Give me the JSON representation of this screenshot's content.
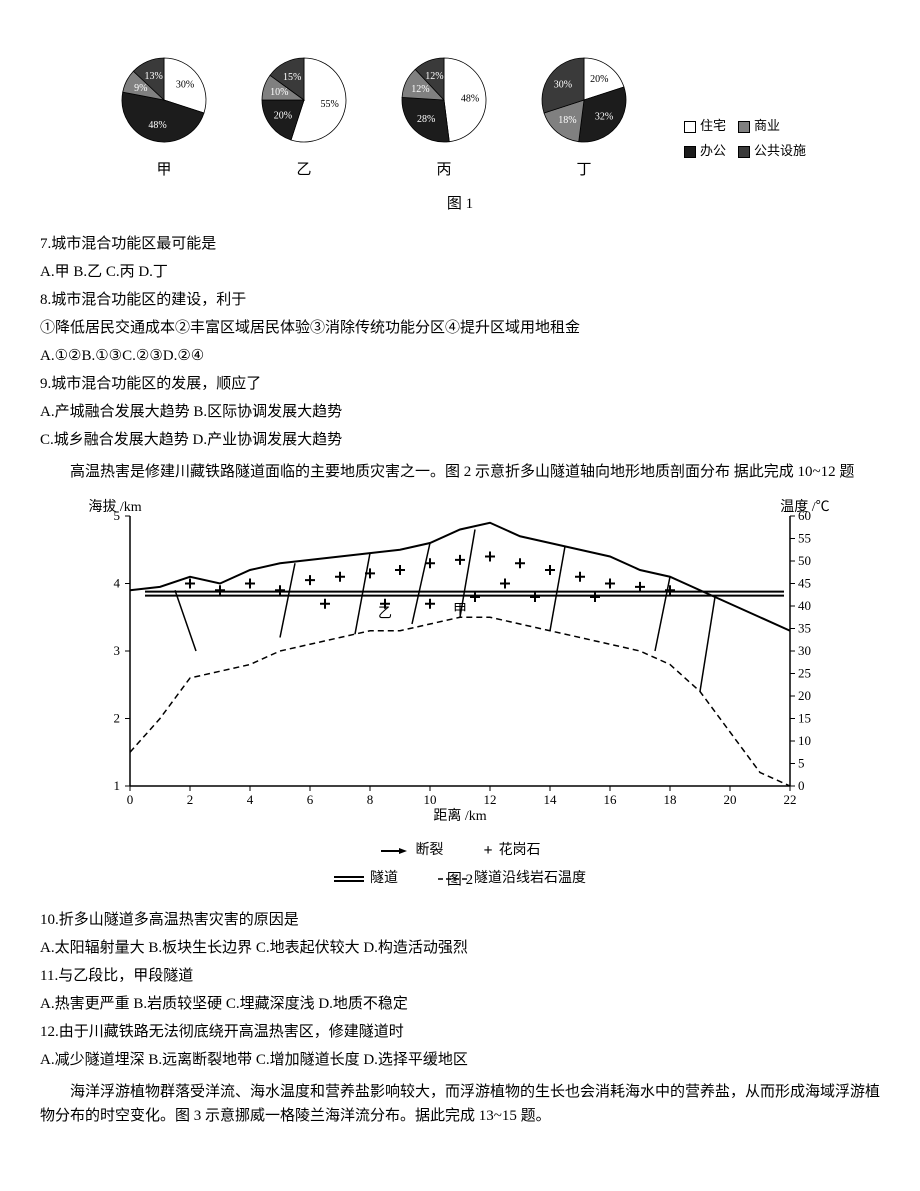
{
  "colors": {
    "residence": "#ffffff",
    "commercial": "#808080",
    "office": "#1c1c1c",
    "public": "#3a3a3a",
    "text": "#000000",
    "chart_line": "#000000",
    "chart_dash": "#000000",
    "bg": "#ffffff"
  },
  "pies": {
    "label_jia": "甲",
    "label_yi": "乙",
    "label_bing": "丙",
    "label_ding": "丁",
    "jia": {
      "slices": [
        {
          "label": "30%",
          "value": 30,
          "color": "#ffffff"
        },
        {
          "label": "48%",
          "value": 48,
          "color": "#1c1c1c"
        },
        {
          "label": "9%",
          "value": 9,
          "color": "#808080"
        },
        {
          "label": "13%",
          "value": 13,
          "color": "#3a3a3a"
        }
      ]
    },
    "yi": {
      "slices": [
        {
          "label": "55%",
          "value": 55,
          "color": "#ffffff"
        },
        {
          "label": "20%",
          "value": 20,
          "color": "#1c1c1c"
        },
        {
          "label": "10%",
          "value": 10,
          "color": "#808080"
        },
        {
          "label": "15%",
          "value": 15,
          "color": "#3a3a3a"
        }
      ]
    },
    "bing": {
      "slices": [
        {
          "label": "48%",
          "value": 48,
          "color": "#ffffff"
        },
        {
          "label": "28%",
          "value": 28,
          "color": "#1c1c1c"
        },
        {
          "label": "12%",
          "value": 12,
          "color": "#808080"
        },
        {
          "label": "12%",
          "value": 12,
          "color": "#3a3a3a"
        }
      ]
    },
    "ding": {
      "slices": [
        {
          "label": "20%",
          "value": 20,
          "color": "#ffffff"
        },
        {
          "label": "32%",
          "value": 32,
          "color": "#1c1c1c"
        },
        {
          "label": "18%",
          "value": 18,
          "color": "#808080"
        },
        {
          "label": "30%",
          "value": 30,
          "color": "#3a3a3a"
        }
      ]
    }
  },
  "pie_legend": {
    "residence": "住宅",
    "commercial": "商业",
    "office": "办公",
    "public": "公共设施"
  },
  "fig1_caption": "图 1",
  "q7": {
    "stem": "7.城市混合功能区最可能是",
    "options": "A.甲 B.乙 C.丙 D.丁"
  },
  "q8": {
    "stem": "8.城市混合功能区的建设，利于",
    "line2": "①降低居民交通成本②丰富区域居民体验③消除传统功能分区④提升区域用地租金",
    "options": "A.①②B.①③C.②③D.②④"
  },
  "q9": {
    "stem": "9.城市混合功能区的发展，顺应了",
    "line2": "A.产城融合发展大趋势 B.区际协调发展大趋势",
    "line3": "C.城乡融合发展大趋势 D.产业协调发展大趋势"
  },
  "passage2": "高温热害是修建川藏铁路隧道面临的主要地质灾害之一。图 2 示意折多山隧道轴向地形地质剖面分布  据此完成 10~12 题",
  "chart2": {
    "xlabel": "距离 /km",
    "ylabel_left": "海拔 /km",
    "ylabel_right": "温度 /℃",
    "x_min": 0,
    "x_max": 22,
    "x_step": 2,
    "y_left_min": 1,
    "y_left_max": 5,
    "y_left_step": 1,
    "y_right_min": 0,
    "y_right_max": 60,
    "y_right_step": 5,
    "terrain": [
      [
        0,
        3.9
      ],
      [
        1,
        3.95
      ],
      [
        2,
        4.1
      ],
      [
        3,
        4.0
      ],
      [
        4,
        4.2
      ],
      [
        5,
        4.3
      ],
      [
        6,
        4.35
      ],
      [
        7,
        4.4
      ],
      [
        8,
        4.45
      ],
      [
        9,
        4.5
      ],
      [
        10,
        4.6
      ],
      [
        11,
        4.8
      ],
      [
        12,
        4.9
      ],
      [
        13,
        4.7
      ],
      [
        14,
        4.6
      ],
      [
        15,
        4.5
      ],
      [
        16,
        4.4
      ],
      [
        17,
        4.2
      ],
      [
        18,
        4.1
      ],
      [
        19,
        3.9
      ],
      [
        20,
        3.7
      ],
      [
        21,
        3.5
      ],
      [
        22,
        3.3
      ]
    ],
    "temp": [
      [
        0,
        1.5
      ],
      [
        1,
        2.0
      ],
      [
        2,
        2.6
      ],
      [
        3,
        2.7
      ],
      [
        4,
        2.8
      ],
      [
        5,
        3.0
      ],
      [
        6,
        3.1
      ],
      [
        7,
        3.2
      ],
      [
        8,
        3.3
      ],
      [
        9,
        3.3
      ],
      [
        10,
        3.4
      ],
      [
        11,
        3.5
      ],
      [
        12,
        3.5
      ],
      [
        13,
        3.4
      ],
      [
        14,
        3.3
      ],
      [
        15,
        3.2
      ],
      [
        16,
        3.1
      ],
      [
        17,
        3.0
      ],
      [
        18,
        2.8
      ],
      [
        19,
        2.4
      ],
      [
        20,
        1.8
      ],
      [
        21,
        1.2
      ],
      [
        22,
        1.0
      ]
    ],
    "tunnel_y": 3.85,
    "tunnel_x0": 0.5,
    "tunnel_x1": 21.8,
    "faults": [
      [
        1.5,
        3.9,
        2.2,
        3.0
      ],
      [
        5.5,
        4.3,
        5.0,
        3.2
      ],
      [
        8.0,
        4.45,
        7.5,
        3.25
      ],
      [
        10.0,
        4.6,
        9.4,
        3.4
      ],
      [
        11.5,
        4.8,
        11.0,
        3.5
      ],
      [
        14.5,
        4.55,
        14.0,
        3.3
      ],
      [
        18.0,
        4.1,
        17.5,
        3.0
      ],
      [
        19.5,
        3.8,
        19.0,
        2.4
      ]
    ],
    "granite_points": [
      [
        2,
        4.0
      ],
      [
        3,
        3.9
      ],
      [
        4,
        4.0
      ],
      [
        5,
        3.9
      ],
      [
        6,
        4.05
      ],
      [
        6.5,
        3.7
      ],
      [
        7,
        4.1
      ],
      [
        8,
        4.15
      ],
      [
        8.5,
        3.7
      ],
      [
        9,
        4.2
      ],
      [
        10,
        4.3
      ],
      [
        10,
        3.7
      ],
      [
        11,
        4.35
      ],
      [
        11.5,
        3.8
      ],
      [
        12,
        4.4
      ],
      [
        12.5,
        4.0
      ],
      [
        13,
        4.3
      ],
      [
        13.5,
        3.8
      ],
      [
        14,
        4.2
      ],
      [
        15,
        4.1
      ],
      [
        15.5,
        3.8
      ],
      [
        16,
        4.0
      ],
      [
        17,
        3.95
      ],
      [
        18,
        3.9
      ]
    ],
    "marker_jia": "甲",
    "marker_yi": "乙",
    "legend": {
      "fault": "断裂",
      "granite": "花岗石",
      "tunnel": "隧道",
      "rock_temp": "隧道沿线岩石温度"
    },
    "caption": "图 2"
  },
  "q10": {
    "stem": "10.折多山隧道多高温热害灾害的原因是",
    "options": "A.太阳辐射量大 B.板块生长边界 C.地表起伏较大 D.构造活动强烈"
  },
  "q11": {
    "stem": "11.与乙段比，甲段隧道",
    "options": "A.热害更严重 B.岩质较坚硬 C.埋藏深度浅 D.地质不稳定"
  },
  "q12": {
    "stem": "12.由于川藏铁路无法彻底绕开高温热害区，修建隧道时",
    "options": "A.减少隧道埋深 B.远离断裂地带 C.增加隧道长度 D.选择平缓地区"
  },
  "passage3": "海洋浮游植物群落受洋流、海水温度和营养盐影响较大，而浮游植物的生长也会消耗海水中的营养盐，从而形成海域浮游植物分布的时空变化。图 3 示意挪威一格陵兰海洋流分布。据此完成 13~15 题。"
}
